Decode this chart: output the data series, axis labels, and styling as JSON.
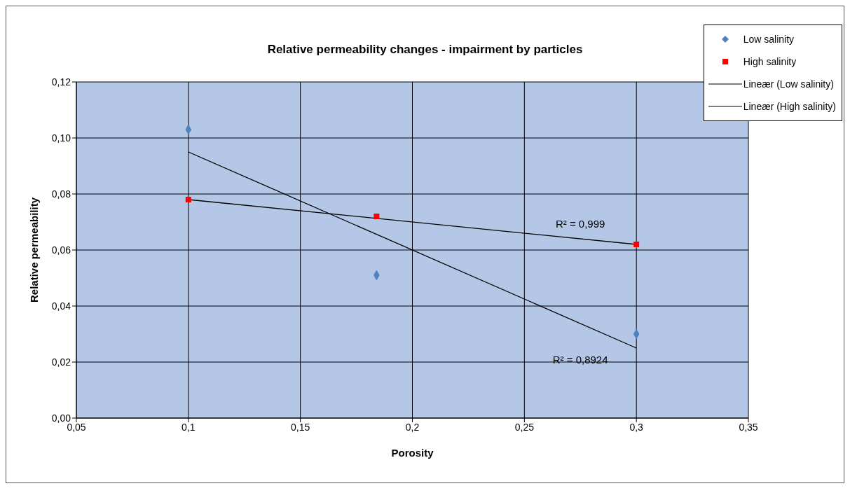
{
  "chart_data": {
    "type": "scatter",
    "title": "Relative permeability changes - impairment by particles",
    "xlabel": "Porosity",
    "ylabel": "Relative permeability",
    "xlim": [
      0.05,
      0.35
    ],
    "xticks": [
      {
        "value": 0.05,
        "label": "0,05"
      },
      {
        "value": 0.1,
        "label": "0,1"
      },
      {
        "value": 0.15,
        "label": "0,15"
      },
      {
        "value": 0.2,
        "label": "0,2"
      },
      {
        "value": 0.25,
        "label": "0,25"
      },
      {
        "value": 0.3,
        "label": "0,3"
      },
      {
        "value": 0.35,
        "label": "0,35"
      }
    ],
    "ylim": [
      0,
      0.12
    ],
    "yticks": [
      {
        "value": 0,
        "label": "0,00"
      },
      {
        "value": 0.02,
        "label": "0,02"
      },
      {
        "value": 0.04,
        "label": "0,04"
      },
      {
        "value": 0.06,
        "label": "0,06"
      },
      {
        "value": 0.08,
        "label": "0,08"
      },
      {
        "value": 0.1,
        "label": "0,10"
      },
      {
        "value": 0.12,
        "label": "0,12"
      }
    ],
    "grid": true,
    "legend": "top right",
    "series": [
      {
        "name": "Low salinity",
        "type": "scatter",
        "marker": "diamond",
        "color": "#4f81bd",
        "x": [
          0.1,
          0.184,
          0.3
        ],
        "values": [
          0.103,
          0.051,
          0.03
        ]
      },
      {
        "name": "High salinity",
        "type": "scatter",
        "marker": "square",
        "color": "#ff0000",
        "x": [
          0.1,
          0.184,
          0.3
        ],
        "values": [
          0.078,
          0.072,
          0.062
        ]
      },
      {
        "name": "Lineær (Low salinity)",
        "type": "line",
        "marker": "none",
        "color": "#000000",
        "x": [
          0.1,
          0.3
        ],
        "values": [
          0.095,
          0.025
        ]
      },
      {
        "name": "Lineær (High salinity)",
        "type": "line",
        "marker": "none",
        "color": "#000000",
        "x": [
          0.1,
          0.3
        ],
        "values": [
          0.078,
          0.062
        ]
      }
    ],
    "annotations": [
      "R² = 0,8924",
      "R² = 0,999"
    ]
  }
}
